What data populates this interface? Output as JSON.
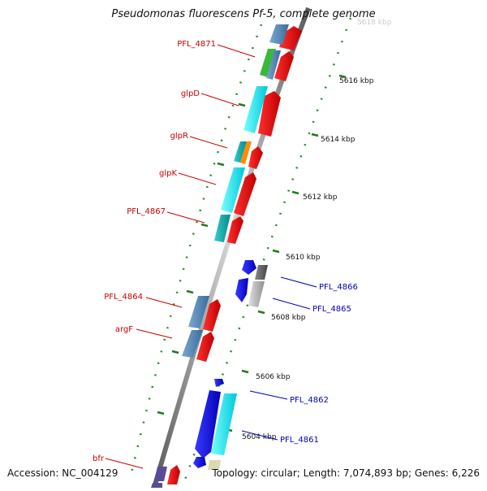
{
  "title": "Pseudomonas fluorescens Pf-5, complete genome",
  "accession": "Accession: NC_004129",
  "summary": "Topology: circular; Length: 7,074,893 bp; Genes: 6,226",
  "colors": {
    "backbone": "#8a8a8a",
    "forward_label": "#cc0000",
    "reverse_label": "#0000bb",
    "ruler": "#2e8b2e"
  },
  "ruler_labels": [
    {
      "label": "5618 kbp"
    },
    {
      "label": "5616 kbp"
    },
    {
      "label": "5614 kbp"
    },
    {
      "label": "5612 kbp"
    },
    {
      "label": "5610 kbp"
    },
    {
      "label": "5608 kbp"
    },
    {
      "label": "5606 kbp"
    },
    {
      "label": "5604 kbp"
    }
  ],
  "forward_gene_labels": [
    {
      "label": "PFL_4871"
    },
    {
      "label": "glpD"
    },
    {
      "label": "glpR"
    },
    {
      "label": "glpK"
    },
    {
      "label": "PFL_4867"
    },
    {
      "label": "PFL_4864"
    },
    {
      "label": "argF"
    },
    {
      "label": "bfr"
    }
  ],
  "reverse_gene_labels": [
    {
      "label": "PFL_4866"
    },
    {
      "label": "PFL_4865"
    },
    {
      "label": "PFL_4862"
    },
    {
      "label": "PFL_4861"
    }
  ]
}
